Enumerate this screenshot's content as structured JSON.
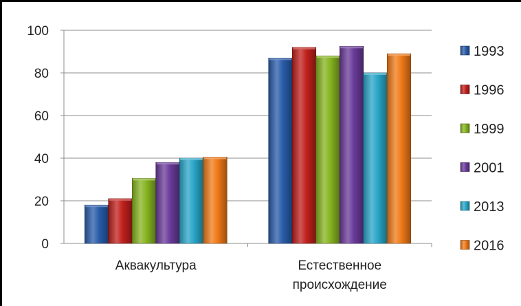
{
  "chart_data": {
    "type": "bar",
    "title": "",
    "xlabel": "",
    "ylabel": "",
    "categories": [
      "Аквакультура",
      "Естественное происхождение"
    ],
    "category_lines": [
      [
        "Аквакультура"
      ],
      [
        "Естественное",
        "происхождение"
      ]
    ],
    "ylim": [
      0,
      100
    ],
    "yticks": [
      "0",
      "20",
      "40",
      "60",
      "80",
      "100"
    ],
    "grid": true,
    "legend_position": "right",
    "series": [
      {
        "name": "1993",
        "values": [
          18,
          87
        ],
        "color": "#2a5caa"
      },
      {
        "name": "1996",
        "values": [
          21,
          92
        ],
        "color": "#c0201c"
      },
      {
        "name": "1999",
        "values": [
          30.5,
          88
        ],
        "color": "#86b420"
      },
      {
        "name": "2001",
        "values": [
          38,
          92.5
        ],
        "color": "#6a3a9a"
      },
      {
        "name": "2013",
        "values": [
          40,
          80
        ],
        "color": "#2aa6c8"
      },
      {
        "name": "2016",
        "values": [
          40.5,
          89
        ],
        "color": "#f07a18"
      }
    ]
  }
}
